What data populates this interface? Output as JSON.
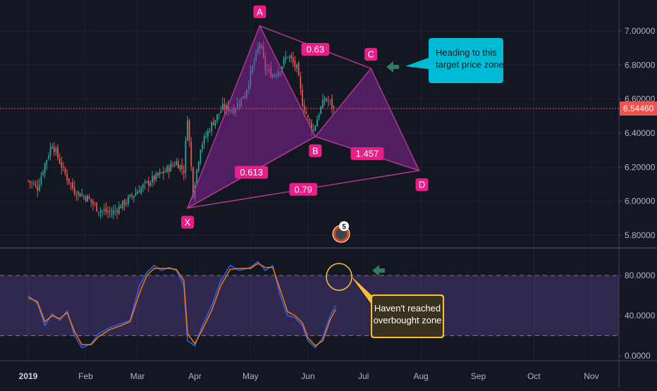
{
  "colors": {
    "background": "#131722",
    "grid": "#1e222d",
    "up": "#26a69a",
    "down": "#ef5350",
    "pattern_fill": "#9c27b0",
    "pattern_stroke": "#b0368f",
    "label_bg": "#e91e89",
    "price_line": "#ef5350",
    "stoch_k": "#2962ff",
    "stoch_d": "#f57c00",
    "stoch_band": "#7e57c2",
    "callout_cyan": "#00bcd4",
    "callout_yellow": "#fbc02d",
    "arrow_green": "#2e7d5e"
  },
  "chart_data": [
    {
      "type": "candlestick",
      "title": "",
      "x_ticks": [
        "2019",
        "Feb",
        "Mar",
        "Apr",
        "May",
        "Jun",
        "Jul",
        "Aug",
        "Sep",
        "Oct",
        "Nov"
      ],
      "y_ticks": [
        "5.80000",
        "6.00000",
        "6.20000",
        "6.40000",
        "6.60000",
        "6.80000",
        "7.00000"
      ],
      "ylim": [
        5.72,
        7.12
      ],
      "last_price": "6.54460",
      "last_price_value": 6.5446,
      "close_path": [
        {
          "x": "2019-01-01",
          "y": 6.12
        },
        {
          "x": "2019-01-06",
          "y": 6.08
        },
        {
          "x": "2019-01-10",
          "y": 6.22
        },
        {
          "x": "2019-01-14",
          "y": 6.34
        },
        {
          "x": "2019-01-20",
          "y": 6.18
        },
        {
          "x": "2019-01-26",
          "y": 6.06
        },
        {
          "x": "2019-02-02",
          "y": 6.02
        },
        {
          "x": "2019-02-08",
          "y": 5.95
        },
        {
          "x": "2019-02-15",
          "y": 5.93
        },
        {
          "x": "2019-02-22",
          "y": 5.99
        },
        {
          "x": "2019-03-01",
          "y": 6.06
        },
        {
          "x": "2019-03-08",
          "y": 6.12
        },
        {
          "x": "2019-03-15",
          "y": 6.17
        },
        {
          "x": "2019-03-22",
          "y": 6.23
        },
        {
          "x": "2019-03-26",
          "y": 6.18
        },
        {
          "x": "2019-03-28",
          "y": 6.5
        },
        {
          "x": "2019-03-31",
          "y": 6.05
        },
        {
          "x": "2019-04-04",
          "y": 6.32
        },
        {
          "x": "2019-04-10",
          "y": 6.45
        },
        {
          "x": "2019-04-16",
          "y": 6.55
        },
        {
          "x": "2019-04-22",
          "y": 6.54
        },
        {
          "x": "2019-04-28",
          "y": 6.63
        },
        {
          "x": "2019-05-03",
          "y": 6.82
        },
        {
          "x": "2019-05-06",
          "y": 6.93
        },
        {
          "x": "2019-05-09",
          "y": 6.78
        },
        {
          "x": "2019-05-13",
          "y": 6.74
        },
        {
          "x": "2019-05-17",
          "y": 6.78
        },
        {
          "x": "2019-05-21",
          "y": 6.86
        },
        {
          "x": "2019-05-26",
          "y": 6.78
        },
        {
          "x": "2019-05-29",
          "y": 6.58
        },
        {
          "x": "2019-06-01",
          "y": 6.48
        },
        {
          "x": "2019-06-04",
          "y": 6.42
        },
        {
          "x": "2019-06-07",
          "y": 6.52
        },
        {
          "x": "2019-06-10",
          "y": 6.6
        },
        {
          "x": "2019-06-13",
          "y": 6.58
        },
        {
          "x": "2019-06-15",
          "y": 6.54
        }
      ],
      "pattern": {
        "points": [
          {
            "label": "X",
            "x": "2019-03-28",
            "y": 5.96
          },
          {
            "label": "A",
            "x": "2019-05-06",
            "y": 7.03
          },
          {
            "label": "B",
            "x": "2019-06-05",
            "y": 6.38
          },
          {
            "label": "C",
            "x": "2019-07-05",
            "y": 6.78
          },
          {
            "label": "D",
            "x": "2019-07-31",
            "y": 6.18
          }
        ],
        "ratios": [
          "0.63",
          "0.613",
          "1.457",
          "0.79"
        ]
      },
      "annotation_price": "Heading to this\ntarget price zone",
      "event_badge": "5"
    },
    {
      "type": "line",
      "title": "",
      "y_ticks": [
        "0.0000",
        "40.0000",
        "80.0000"
      ],
      "ylim": [
        -5,
        108
      ],
      "band": [
        20,
        80
      ],
      "series": [
        {
          "color": "#2962ff",
          "values": [
            {
              "x": "2019-01-01",
              "y": 60
            },
            {
              "x": "2019-01-06",
              "y": 52
            },
            {
              "x": "2019-01-10",
              "y": 30
            },
            {
              "x": "2019-01-14",
              "y": 42
            },
            {
              "x": "2019-01-18",
              "y": 35
            },
            {
              "x": "2019-01-22",
              "y": 45
            },
            {
              "x": "2019-01-26",
              "y": 20
            },
            {
              "x": "2019-01-30",
              "y": 8
            },
            {
              "x": "2019-02-04",
              "y": 12
            },
            {
              "x": "2019-02-08",
              "y": 22
            },
            {
              "x": "2019-02-14",
              "y": 28
            },
            {
              "x": "2019-02-20",
              "y": 32
            },
            {
              "x": "2019-02-25",
              "y": 35
            },
            {
              "x": "2019-03-02",
              "y": 70
            },
            {
              "x": "2019-03-06",
              "y": 83
            },
            {
              "x": "2019-03-10",
              "y": 90
            },
            {
              "x": "2019-03-14",
              "y": 85
            },
            {
              "x": "2019-03-18",
              "y": 88
            },
            {
              "x": "2019-03-22",
              "y": 85
            },
            {
              "x": "2019-03-26",
              "y": 70
            },
            {
              "x": "2019-03-28",
              "y": 15
            },
            {
              "x": "2019-04-01",
              "y": 10
            },
            {
              "x": "2019-04-05",
              "y": 30
            },
            {
              "x": "2019-04-10",
              "y": 50
            },
            {
              "x": "2019-04-15",
              "y": 75
            },
            {
              "x": "2019-04-20",
              "y": 90
            },
            {
              "x": "2019-04-25",
              "y": 85
            },
            {
              "x": "2019-05-01",
              "y": 88
            },
            {
              "x": "2019-05-05",
              "y": 94
            },
            {
              "x": "2019-05-09",
              "y": 85
            },
            {
              "x": "2019-05-13",
              "y": 90
            },
            {
              "x": "2019-05-17",
              "y": 60
            },
            {
              "x": "2019-05-21",
              "y": 40
            },
            {
              "x": "2019-05-25",
              "y": 38
            },
            {
              "x": "2019-05-29",
              "y": 30
            },
            {
              "x": "2019-06-01",
              "y": 15
            },
            {
              "x": "2019-06-05",
              "y": 8
            },
            {
              "x": "2019-06-09",
              "y": 18
            },
            {
              "x": "2019-06-13",
              "y": 40
            },
            {
              "x": "2019-06-16",
              "y": 50
            }
          ]
        },
        {
          "color": "#f57c00",
          "values": [
            {
              "x": "2019-01-01",
              "y": 58
            },
            {
              "x": "2019-01-06",
              "y": 54
            },
            {
              "x": "2019-01-10",
              "y": 34
            },
            {
              "x": "2019-01-14",
              "y": 40
            },
            {
              "x": "2019-01-18",
              "y": 37
            },
            {
              "x": "2019-01-22",
              "y": 43
            },
            {
              "x": "2019-01-26",
              "y": 24
            },
            {
              "x": "2019-01-30",
              "y": 11
            },
            {
              "x": "2019-02-04",
              "y": 11
            },
            {
              "x": "2019-02-08",
              "y": 19
            },
            {
              "x": "2019-02-14",
              "y": 26
            },
            {
              "x": "2019-02-20",
              "y": 30
            },
            {
              "x": "2019-02-25",
              "y": 34
            },
            {
              "x": "2019-03-02",
              "y": 62
            },
            {
              "x": "2019-03-06",
              "y": 80
            },
            {
              "x": "2019-03-10",
              "y": 87
            },
            {
              "x": "2019-03-14",
              "y": 87
            },
            {
              "x": "2019-03-18",
              "y": 87
            },
            {
              "x": "2019-03-22",
              "y": 86
            },
            {
              "x": "2019-03-26",
              "y": 75
            },
            {
              "x": "2019-03-28",
              "y": 22
            },
            {
              "x": "2019-04-01",
              "y": 12
            },
            {
              "x": "2019-04-05",
              "y": 26
            },
            {
              "x": "2019-04-10",
              "y": 45
            },
            {
              "x": "2019-04-15",
              "y": 70
            },
            {
              "x": "2019-04-20",
              "y": 86
            },
            {
              "x": "2019-04-25",
              "y": 87
            },
            {
              "x": "2019-05-01",
              "y": 87
            },
            {
              "x": "2019-05-05",
              "y": 92
            },
            {
              "x": "2019-05-09",
              "y": 88
            },
            {
              "x": "2019-05-13",
              "y": 88
            },
            {
              "x": "2019-05-17",
              "y": 66
            },
            {
              "x": "2019-05-21",
              "y": 44
            },
            {
              "x": "2019-05-25",
              "y": 40
            },
            {
              "x": "2019-05-29",
              "y": 33
            },
            {
              "x": "2019-06-01",
              "y": 18
            },
            {
              "x": "2019-06-05",
              "y": 10
            },
            {
              "x": "2019-06-09",
              "y": 15
            },
            {
              "x": "2019-06-13",
              "y": 36
            },
            {
              "x": "2019-06-16",
              "y": 46
            }
          ]
        }
      ],
      "annotation": "Haven't reached\noverbought zone"
    }
  ]
}
